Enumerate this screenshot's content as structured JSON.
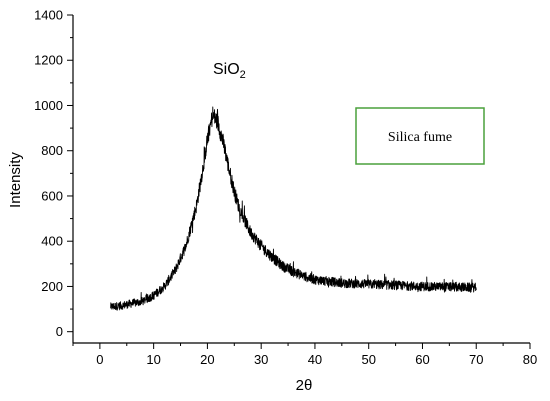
{
  "chart_data": {
    "type": "line",
    "title": "",
    "xlabel": "2θ",
    "ylabel": "Intensity",
    "xlim": [
      -5,
      80
    ],
    "ylim": [
      -50,
      1400
    ],
    "x_ticks": [
      0,
      10,
      20,
      30,
      40,
      50,
      60,
      70,
      80
    ],
    "y_ticks": [
      0,
      200,
      400,
      600,
      800,
      1000,
      1200,
      1400
    ],
    "grid": false,
    "annotations": [
      {
        "text": "SiO",
        "subscript": "2",
        "x": 21.5,
        "y": 1160
      }
    ],
    "legend": {
      "text": "Silica fume",
      "position": "right",
      "border_color": "#4aa13c"
    },
    "series": [
      {
        "name": "Silica fume",
        "color": "#000000",
        "noise_amplitude": 45,
        "x_start": 2.0,
        "x_end": 70.0,
        "profile": [
          [
            2,
            110
          ],
          [
            4,
            115
          ],
          [
            6,
            125
          ],
          [
            8,
            135
          ],
          [
            10,
            160
          ],
          [
            12,
            200
          ],
          [
            14,
            270
          ],
          [
            16,
            380
          ],
          [
            18,
            560
          ],
          [
            19,
            700
          ],
          [
            20,
            850
          ],
          [
            21,
            960
          ],
          [
            22,
            920
          ],
          [
            23,
            830
          ],
          [
            24,
            720
          ],
          [
            25,
            620
          ],
          [
            26,
            540
          ],
          [
            28,
            440
          ],
          [
            30,
            380
          ],
          [
            32,
            330
          ],
          [
            34,
            290
          ],
          [
            36,
            265
          ],
          [
            38,
            245
          ],
          [
            40,
            230
          ],
          [
            45,
            215
          ],
          [
            50,
            210
          ],
          [
            55,
            205
          ],
          [
            60,
            200
          ],
          [
            65,
            198
          ],
          [
            70,
            195
          ]
        ]
      }
    ]
  }
}
